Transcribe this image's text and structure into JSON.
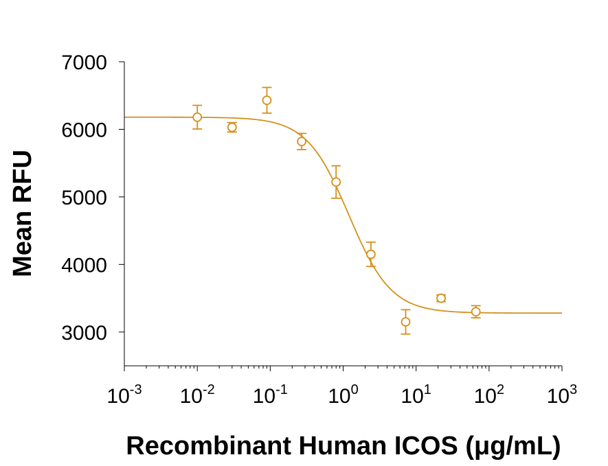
{
  "chart_data": {
    "type": "scatter",
    "title": "",
    "xlabel": "Recombinant Human ICOS (μg/mL)",
    "ylabel": "Mean RFU",
    "x_scale": "log10",
    "xlim": [
      0.001,
      1000
    ],
    "ylim": [
      2500,
      7000
    ],
    "grid": false,
    "color": "#D4901A",
    "x_tick_labels": [
      {
        "value": 0.001,
        "base": "10",
        "exp": "-3"
      },
      {
        "value": 0.01,
        "base": "10",
        "exp": "-2"
      },
      {
        "value": 0.1,
        "base": "10",
        "exp": "-1"
      },
      {
        "value": 1,
        "base": "10",
        "exp": "0"
      },
      {
        "value": 10,
        "base": "10",
        "exp": "1"
      },
      {
        "value": 100,
        "base": "10",
        "exp": "2"
      },
      {
        "value": 1000,
        "base": "10",
        "exp": "3"
      }
    ],
    "y_tick_labels": [
      {
        "value": 3000,
        "label": "3000"
      },
      {
        "value": 4000,
        "label": "4000"
      },
      {
        "value": 5000,
        "label": "5000"
      },
      {
        "value": 6000,
        "label": "6000"
      },
      {
        "value": 7000,
        "label": "7000"
      }
    ],
    "points": [
      {
        "x": 0.01,
        "y": 6180,
        "err": 175
      },
      {
        "x": 0.03,
        "y": 6030,
        "err": 70
      },
      {
        "x": 0.09,
        "y": 6430,
        "err": 190
      },
      {
        "x": 0.27,
        "y": 5820,
        "err": 120
      },
      {
        "x": 0.8,
        "y": 5220,
        "err": 240
      },
      {
        "x": 2.4,
        "y": 4150,
        "err": 180
      },
      {
        "x": 7.2,
        "y": 3150,
        "err": 180
      },
      {
        "x": 22,
        "y": 3500,
        "err": 50
      },
      {
        "x": 66,
        "y": 3300,
        "err": 90
      }
    ],
    "fit": {
      "model": "4PL",
      "top": 6180,
      "bottom": 3280,
      "ec50": 1.2,
      "hill": 1.5,
      "x_range": [
        0.001,
        1000
      ]
    }
  }
}
